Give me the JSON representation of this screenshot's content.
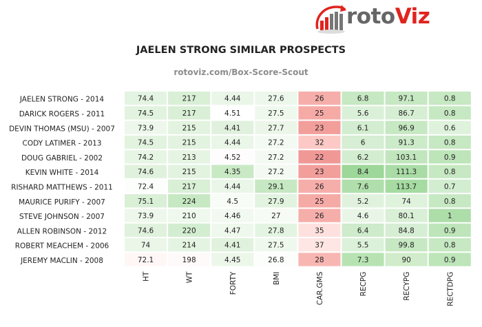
{
  "logo": {
    "text_main": "roto",
    "text_accent": "Viz",
    "accent_color": "#e0241f",
    "icon": "bar-chart-arrow-logo-icon"
  },
  "chart_data": {
    "type": "heatmap",
    "title": "JAELEN STRONG SIMILAR PROSPECTS",
    "subtitle": "rotoviz.com/Box-Score-Scout",
    "columns": [
      "HT",
      "WT",
      "FORTY",
      "BMI",
      "CAR.GMS",
      "RECPG",
      "RECYPG",
      "RECTDPG"
    ],
    "rows": [
      {
        "label": "JAELEN STRONG - 2014",
        "values": [
          74.4,
          217,
          4.44,
          27.6,
          26,
          6.8,
          97.1,
          0.8
        ]
      },
      {
        "label": "DARICK ROGERS - 2011",
        "values": [
          74.5,
          217,
          4.51,
          27.5,
          25,
          5.6,
          86.7,
          0.8
        ]
      },
      {
        "label": "DEVIN THOMAS (MSU) - 2007",
        "values": [
          73.9,
          215,
          4.41,
          27.7,
          23,
          6.1,
          96.9,
          0.6
        ]
      },
      {
        "label": "CODY LATIMER - 2013",
        "values": [
          74.5,
          215,
          4.44,
          27.2,
          32,
          6,
          91.3,
          0.8
        ]
      },
      {
        "label": "DOUG GABRIEL - 2002",
        "values": [
          74.2,
          213,
          4.52,
          27.2,
          22,
          6.2,
          103.1,
          0.9
        ]
      },
      {
        "label": "KEVIN WHITE - 2014",
        "values": [
          74.6,
          215,
          4.35,
          27.2,
          23,
          8.4,
          111.3,
          0.8
        ]
      },
      {
        "label": "RISHARD MATTHEWS - 2011",
        "values": [
          72.4,
          217,
          4.44,
          29.1,
          26,
          7.6,
          113.7,
          0.7
        ]
      },
      {
        "label": "MAURICE PURIFY - 2007",
        "values": [
          75.1,
          224,
          4.5,
          27.9,
          25,
          5.2,
          74,
          0.8
        ]
      },
      {
        "label": "STEVE JOHNSON - 2007",
        "values": [
          73.9,
          210,
          4.46,
          27,
          26,
          4.6,
          80.1,
          1
        ]
      },
      {
        "label": "ALLEN ROBINSON - 2012",
        "values": [
          74.6,
          220,
          4.47,
          27.8,
          35,
          6.4,
          84.8,
          0.9
        ]
      },
      {
        "label": "ROBERT MEACHEM - 2006",
        "values": [
          74,
          214,
          4.41,
          27.5,
          37,
          5.5,
          99.8,
          0.8
        ]
      },
      {
        "label": "JEREMY MACLIN - 2008",
        "values": [
          72.1,
          198,
          4.45,
          26.8,
          28,
          7.3,
          90,
          0.9
        ]
      }
    ],
    "color_scale": {
      "low": "#ef8a87",
      "mid": "#ffffff",
      "high": "#8fd18f"
    },
    "cell_colors": [
      [
        "#e4f4e2",
        "#d9efd6",
        "#eaf6e8",
        "#edf7eb",
        "#f6aeaa",
        "#c6e8c2",
        "#c6e8c2",
        "#c6e8c2"
      ],
      [
        "#e2f3df",
        "#d9efd6",
        "#ffffff",
        "#eff8ed",
        "#f6aaa6",
        "#dbf0d8",
        "#d6eed3",
        "#c6e8c2"
      ],
      [
        "#edf7eb",
        "#e2f3df",
        "#e0f2dd",
        "#ebf6e9",
        "#f29e9b",
        "#d3edd0",
        "#c6e8c2",
        "#dff2dc"
      ],
      [
        "#e2f3df",
        "#e2f3df",
        "#eaf6e8",
        "#f3faf2",
        "#fcc9c6",
        "#d6eed3",
        "#ccebc9",
        "#c6e8c2"
      ],
      [
        "#e7f5e5",
        "#e6f4e3",
        "#fefcfc",
        "#f3faf2",
        "#f09896",
        "#d3edd0",
        "#c1e6bd",
        "#bde5b9"
      ],
      [
        "#e0f2dd",
        "#e2f3df",
        "#c8e9c4",
        "#f3faf2",
        "#f29e9b",
        "#9dd799",
        "#aadca6",
        "#c6e8c2"
      ],
      [
        "#fcfefc",
        "#d9efd6",
        "#eaf6e8",
        "#c6e8c2",
        "#f6aeaa",
        "#b0dfac",
        "#a6dba2",
        "#d3edd0"
      ],
      [
        "#d9efd6",
        "#c6e8c2",
        "#f8fcf7",
        "#e2f3df",
        "#f6aaa6",
        "#e0f2dd",
        "#dff2dc",
        "#c6e8c2"
      ],
      [
        "#edf7eb",
        "#eef8ec",
        "#f1f9f0",
        "#f6fbf5",
        "#f6aeaa",
        "#e9f6e7",
        "#d9efd6",
        "#addda9"
      ],
      [
        "#e0f2dd",
        "#d3edd0",
        "#eef8ec",
        "#e4f4e2",
        "#fee1df",
        "#ceebcb",
        "#d6eed3",
        "#bde5b9"
      ],
      [
        "#ebf6e9",
        "#e4f4e2",
        "#e0f2dd",
        "#eff8ed",
        "#fee6e4",
        "#dcf1d9",
        "#c6e8c2",
        "#c6e8c2"
      ],
      [
        "#fff6f6",
        "#fffafa",
        "#ecf7ea",
        "#fcfefc",
        "#f8b6b2",
        "#b7e3b3",
        "#d0ecca",
        "#bde5b9"
      ]
    ]
  }
}
